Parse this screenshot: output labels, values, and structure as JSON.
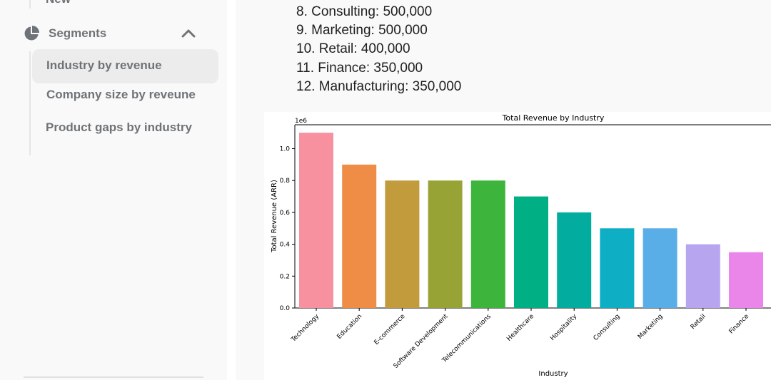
{
  "sidebar": {
    "prev_item_label": "New",
    "segments": {
      "label": "Segments",
      "icon": "pie-chart-icon",
      "expanded": true,
      "items": [
        {
          "label": "Industry by revenue",
          "selected": true
        },
        {
          "label": "Company size by reveune",
          "selected": false
        },
        {
          "label": "Product gaps by industry",
          "selected": false
        }
      ]
    }
  },
  "main": {
    "list_items": [
      "8. Consulting: 500,000",
      "9. Marketing: 500,000",
      "10. Retail: 400,000",
      "11. Finance: 350,000",
      "12. Manufacturing: 350,000"
    ]
  },
  "chart_data": {
    "type": "bar",
    "title": "Total Revenue by Industry",
    "xlabel": "Industry",
    "ylabel": "Total Revenue (ARR)",
    "y_multiplier_label": "1e6",
    "ylim": [
      0,
      1150000
    ],
    "y_ticks": [
      0,
      200000,
      400000,
      600000,
      800000,
      1000000
    ],
    "y_tick_labels": [
      "0.0",
      "0.2",
      "0.4",
      "0.6",
      "0.8",
      "1.0"
    ],
    "grid": false,
    "categories": [
      "Technology",
      "Education",
      "E-commerce",
      "Software Development",
      "Telecommunications",
      "Healthcare",
      "Hospitality",
      "Consulting",
      "Marketing",
      "Retail",
      "Finance"
    ],
    "values": [
      1100000,
      900000,
      800000,
      800000,
      800000,
      700000,
      600000,
      500000,
      500000,
      400000,
      350000
    ],
    "colors": [
      "#f7919f",
      "#ef8c46",
      "#c19b3c",
      "#98a336",
      "#3db53c",
      "#00b084",
      "#02ac9f",
      "#0eafc4",
      "#5aaee8",
      "#b7a6ef",
      "#ea86e9"
    ]
  }
}
